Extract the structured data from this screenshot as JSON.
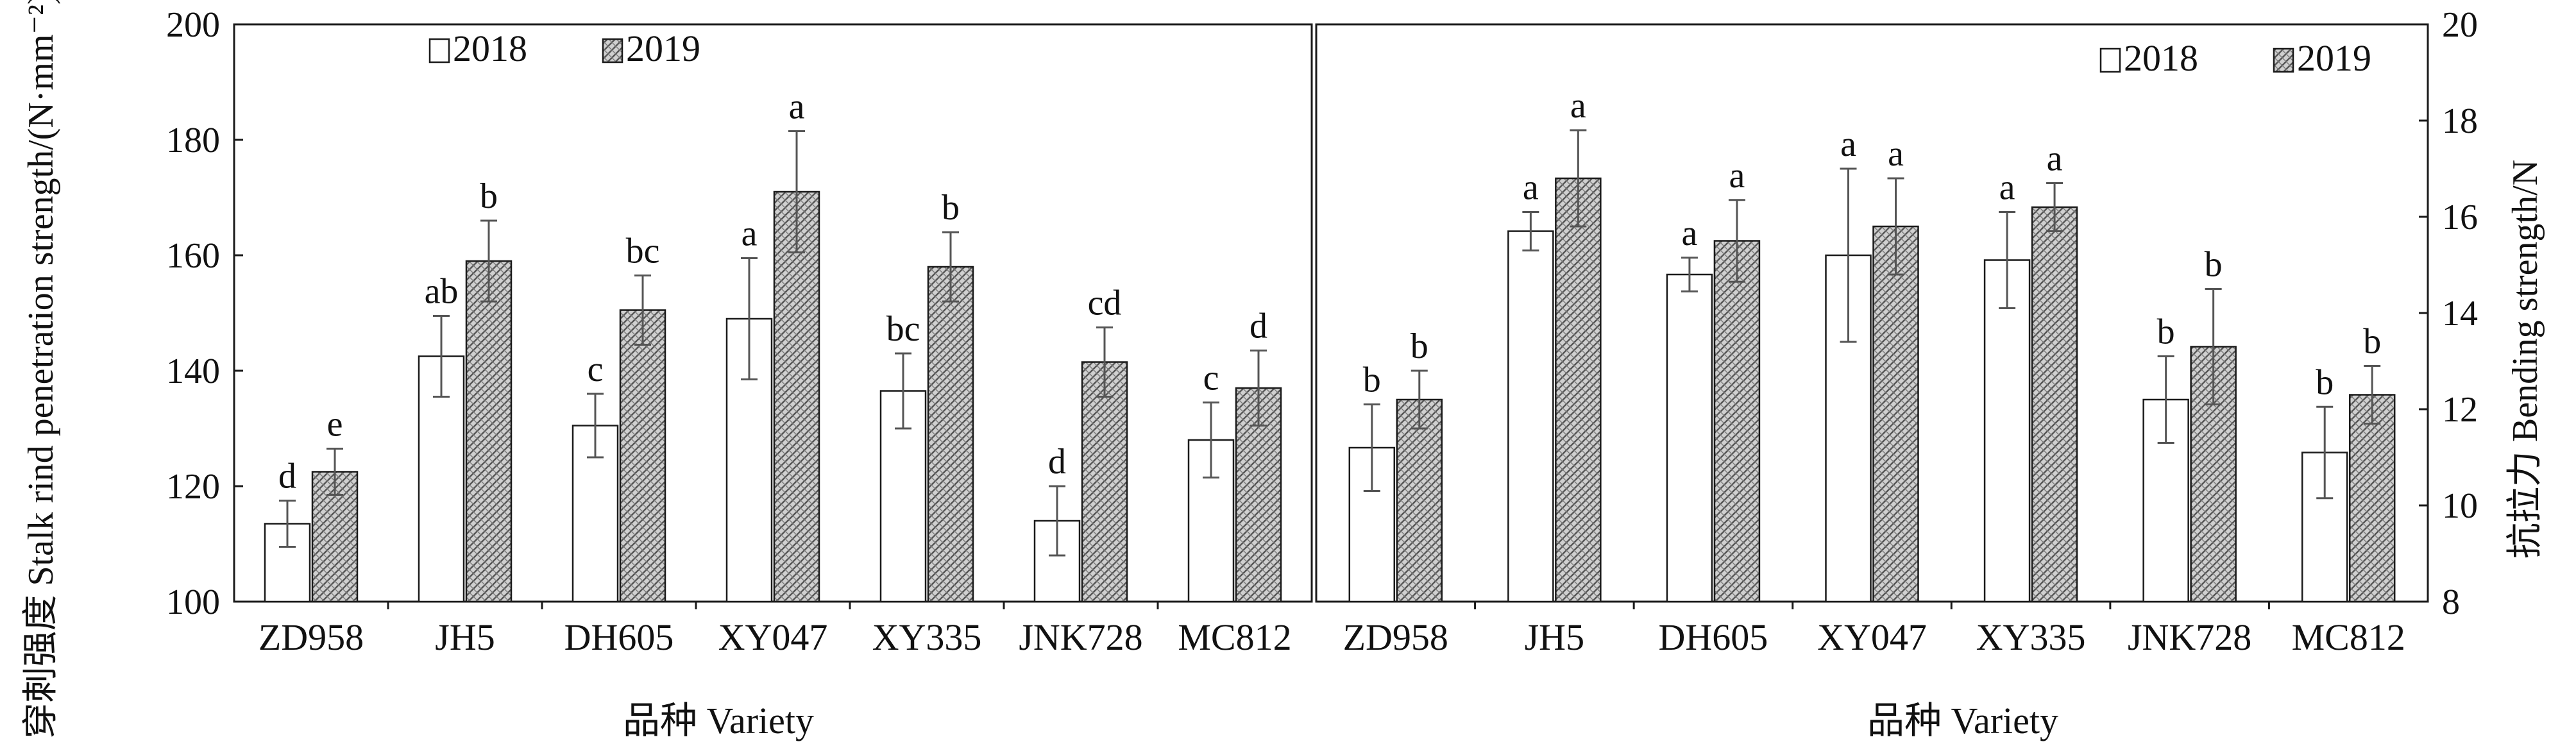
{
  "colors": {
    "bar2018": "#ffffff",
    "bar2019": "#d0d0d0",
    "hatch": "#555555",
    "axis": "#1a1a1a",
    "error": "#555555"
  },
  "chart_data": [
    {
      "type": "bar",
      "title": "",
      "xlabel": "品种 Variety",
      "ylabel": "穿刺强度 Stalk rind penetration strength/(N·mm⁻²)",
      "ylim": [
        100,
        200
      ],
      "yticks": [
        "100",
        "120",
        "140",
        "160",
        "180",
        "200"
      ],
      "ytick_values": [
        100,
        120,
        140,
        160,
        180,
        200
      ],
      "grid": false,
      "legend": "top-left",
      "categories": [
        "ZD958",
        "JH5",
        "DH605",
        "XY047",
        "XY335",
        "JNK728",
        "MC812"
      ],
      "series": [
        {
          "name": "2018",
          "values": [
            113.5,
            142.5,
            130.5,
            149,
            136.5,
            114,
            128
          ],
          "errors": [
            4,
            7,
            5.5,
            10.5,
            6.5,
            6,
            6.5
          ],
          "letters": [
            "d",
            "ab",
            "c",
            "a",
            "bc",
            "d",
            "c"
          ]
        },
        {
          "name": "2019",
          "values": [
            122.5,
            159,
            150.5,
            171,
            158,
            141.5,
            137
          ],
          "errors": [
            4,
            7,
            6,
            10.5,
            6,
            6,
            6.5
          ],
          "letters": [
            "e",
            "b",
            "bc",
            "a",
            "b",
            "cd",
            "d"
          ]
        }
      ]
    },
    {
      "type": "bar",
      "title": "",
      "xlabel": "品种 Variety",
      "ylabel": "抗拉力 Bending strength/N",
      "ylim": [
        8,
        20
      ],
      "yticks": [
        "8",
        "10",
        "12",
        "14",
        "16",
        "18",
        "20"
      ],
      "ytick_values": [
        8,
        10,
        12,
        14,
        16,
        18,
        20
      ],
      "grid": false,
      "legend": "top-right",
      "categories": [
        "ZD958",
        "JH5",
        "DH605",
        "XY047",
        "XY335",
        "JNK728",
        "MC812"
      ],
      "series": [
        {
          "name": "2018",
          "values": [
            11.2,
            15.7,
            14.8,
            15.2,
            15.1,
            12.2,
            11.1
          ],
          "errors": [
            0.9,
            0.4,
            0.35,
            1.8,
            1.0,
            0.9,
            0.95
          ],
          "letters": [
            "b",
            "a",
            "a",
            "a",
            "a",
            "b",
            "b"
          ]
        },
        {
          "name": "2019",
          "values": [
            12.2,
            16.8,
            15.5,
            15.8,
            16.2,
            13.3,
            12.3
          ],
          "errors": [
            0.6,
            1.0,
            0.85,
            1.0,
            0.5,
            1.2,
            0.6
          ],
          "letters": [
            "b",
            "a",
            "a",
            "a",
            "a",
            "b",
            "b"
          ]
        }
      ]
    }
  ]
}
